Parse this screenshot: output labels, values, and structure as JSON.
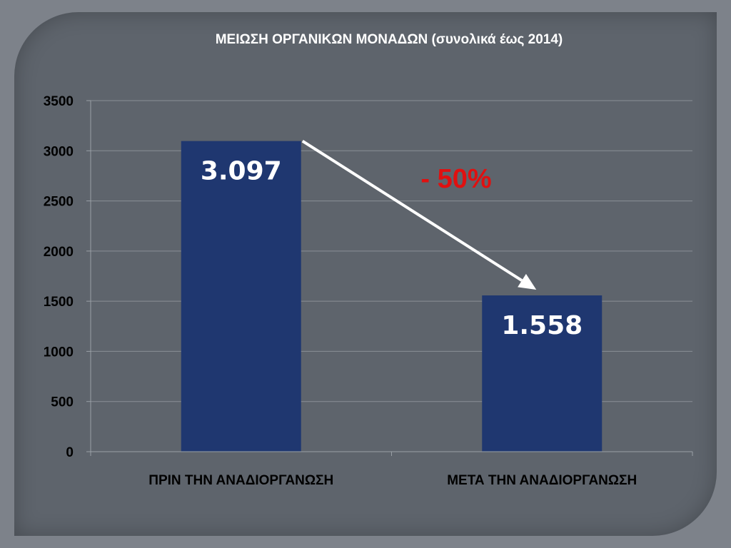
{
  "chart_data": {
    "type": "bar",
    "title": "ΜΕΙΩΣΗ ΟΡΓΑΝΙΚΩΝ ΜΟΝΑΔΩΝ (συνολικά έως 2014)",
    "categories": [
      "ΠΡΙΝ ΤΗΝ ΑΝΑΔΙΟΡΓΑΝΩΣΗ",
      "ΜΕΤΑ ΤΗΝ ΑΝΑΔΙΟΡΓΑΝΩΣΗ"
    ],
    "values": [
      3097,
      1558
    ],
    "data_labels": [
      "3.097",
      "1.558"
    ],
    "ylim": [
      0,
      3500
    ],
    "yticks": [
      0,
      500,
      1000,
      1500,
      2000,
      2500,
      3000,
      3500
    ],
    "grid": true,
    "annotation": {
      "text": "- 50%",
      "color": "#e01010"
    },
    "bar_color": "#1f3770"
  }
}
